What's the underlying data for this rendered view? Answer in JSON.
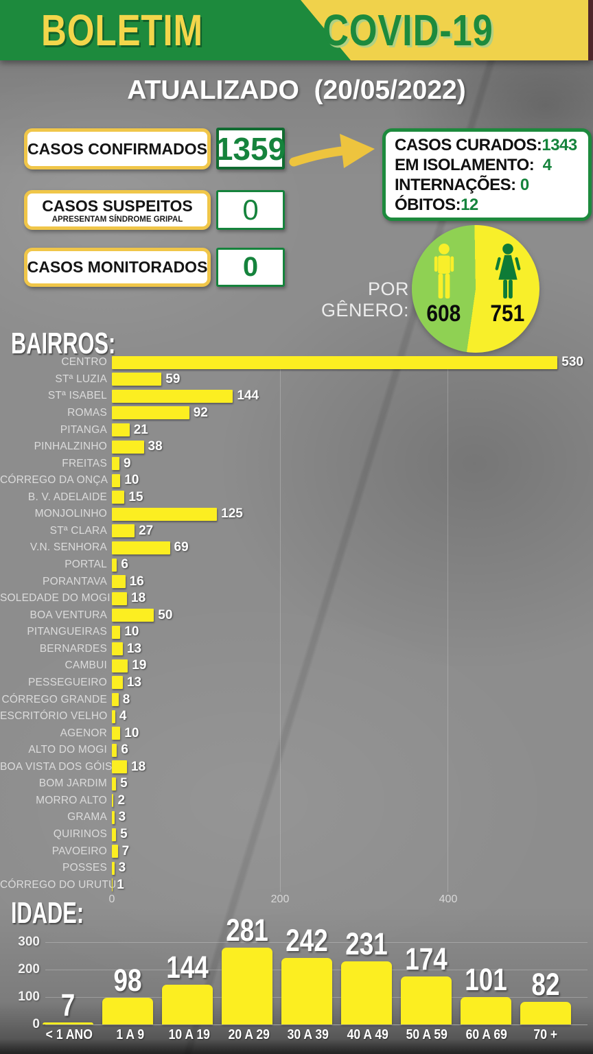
{
  "header": {
    "title_left": "BOLETIM",
    "title_right": "COVID-19"
  },
  "updated_label": "ATUALIZADO  (20/05/2022)",
  "cards": [
    {
      "title": "CASOS CONFIRMADOS",
      "subtitle": "",
      "value": "1359"
    },
    {
      "title": "CASOS SUSPEITOS",
      "subtitle": "APRESENTAM SÍNDROME GRIPAL",
      "value": "0"
    },
    {
      "title": "CASOS MONITORADOS",
      "subtitle": "",
      "value": "0"
    }
  ],
  "summary": [
    {
      "label": "CASOS CURADOS:",
      "value": "1343"
    },
    {
      "label": "EM ISOLAMENTO:",
      "value": "  4"
    },
    {
      "label": "INTERNAÇÕES:",
      "value": " 0"
    },
    {
      "label": "ÓBITOS:",
      "value": "12"
    }
  ],
  "gender": {
    "label": "POR GÊNERO:",
    "male_count": "608",
    "female_count": "751"
  },
  "chart_data": [
    {
      "type": "bar",
      "orientation": "horizontal",
      "title": "BAIRROS:",
      "categories": [
        "CENTRO",
        "STª LUZIA",
        "STª ISABEL",
        "ROMAS",
        "PITANGA",
        "PINHALZINHO",
        "FREITAS",
        "CÓRREGO DA ONÇA",
        "B. V. ADELAIDE",
        "MONJOLINHO",
        "STª CLARA",
        "V.N. SENHORA",
        "PORTAL",
        "PORANTAVA",
        "SOLEDADE DO MOGI",
        "BOA VENTURA",
        "PITANGUEIRAS",
        "BERNARDES",
        "CAMBUI",
        "PESSEGUEIRO",
        "CÓRREGO GRANDE",
        "ESCRITÓRIO VELHO",
        "AGENOR",
        "ALTO DO MOGI",
        "BOA VISTA DOS GÓIS",
        "BOM JARDIM",
        "MORRO ALTO",
        "GRAMA",
        "QUIRINOS",
        "PAVOEIRO",
        "POSSES",
        "CÓRREGO DO URUTU"
      ],
      "values": [
        530,
        59,
        144,
        92,
        21,
        38,
        9,
        10,
        15,
        125,
        27,
        69,
        6,
        16,
        18,
        50,
        10,
        13,
        19,
        13,
        8,
        4,
        10,
        6,
        18,
        5,
        2,
        3,
        5,
        7,
        3,
        1
      ],
      "xlim": [
        0,
        570
      ],
      "xticks": [
        0,
        200,
        400
      ],
      "grid": true,
      "legend": "none"
    },
    {
      "type": "bar",
      "orientation": "vertical",
      "title": "IDADE:",
      "categories": [
        "< 1 ANO",
        "1 A 9",
        "10 A 19",
        "20 A 29",
        "30 A 39",
        "40 A 49",
        "50 A 59",
        "60 A 69",
        "70 +"
      ],
      "values": [
        7,
        98,
        144,
        281,
        242,
        231,
        174,
        101,
        82
      ],
      "ylim": [
        0,
        330
      ],
      "yticks": [
        0,
        100,
        200,
        300
      ],
      "grid": true,
      "legend": "none"
    }
  ],
  "colors": {
    "header_green": "#1d8a3d",
    "header_yellow": "#f0d24b",
    "card_border_gold": "#f0c649",
    "value_green": "#15833c",
    "bar_yellow": "#fcee21",
    "pie_green": "#8fd153",
    "pie_yellow": "#f8ef2a",
    "female_icon_green": "#0e7b37",
    "arrow_yellow": "#eec43e"
  }
}
